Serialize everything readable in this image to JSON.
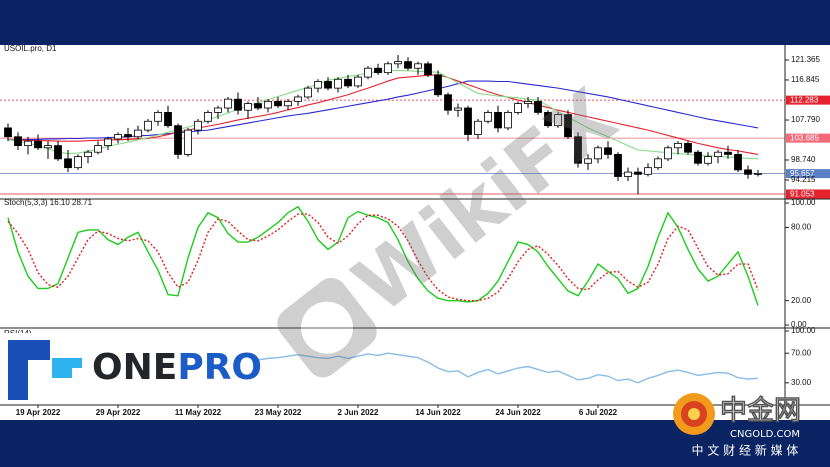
{
  "chart_data": [
    {
      "type": "candlestick",
      "title": "USOIL.pro, D1",
      "categories": [
        null,
        null,
        null,
        "19 Apr 2022",
        null,
        null,
        null,
        null,
        null,
        null,
        null,
        "29 Apr 2022",
        null,
        null,
        null,
        null,
        null,
        null,
        null,
        "11 May 2022",
        null,
        null,
        null,
        null,
        null,
        null,
        null,
        "23 May 2022",
        null,
        null,
        null,
        null,
        null,
        null,
        null,
        "2 Jun 2022",
        null,
        null,
        null,
        null,
        null,
        null,
        null,
        "14 Jun 2022",
        null,
        null,
        null,
        null,
        null,
        null,
        null,
        "24 Jun 2022",
        null,
        null,
        null,
        null,
        null,
        null,
        null,
        "6 Jul 2022",
        null,
        null,
        null,
        null,
        null,
        null,
        null,
        null,
        null,
        null,
        null,
        null,
        null,
        null,
        null,
        null
      ],
      "open": [
        106,
        104,
        102,
        103,
        101.5,
        102,
        99,
        97,
        99.5,
        100.5,
        102,
        103.5,
        104.5,
        104,
        105.5,
        107.5,
        109.5,
        106.5,
        100,
        105.5,
        107.5,
        109.5,
        110.5,
        112.5,
        110,
        111.5,
        110.5,
        112,
        111,
        112,
        113,
        115,
        116.5,
        115,
        117,
        115.5,
        117.5,
        119.5,
        118.5,
        120.5,
        121,
        119.5,
        120.5,
        118,
        113.5,
        110,
        110.5,
        104.5,
        107.5,
        109.5,
        106,
        109.5,
        111.5,
        112,
        109.5,
        106.5,
        109,
        104,
        98,
        99,
        101.5,
        100,
        95,
        96,
        95.5,
        97,
        99,
        101.5,
        102.5,
        100.5,
        98,
        99.5,
        100.5,
        100,
        96.5,
        95.5
      ],
      "high": [
        107,
        105,
        104,
        104.5,
        103,
        103,
        101,
        100,
        101,
        103,
        104,
        105,
        106,
        106.5,
        108,
        110,
        111,
        107,
        106,
        108,
        110,
        111,
        113,
        114,
        112,
        113,
        112.5,
        113,
        112.5,
        113.5,
        115.5,
        117,
        117.5,
        117.5,
        118,
        118,
        120,
        120.5,
        121,
        122.5,
        122,
        121,
        121,
        119,
        114,
        111.5,
        111,
        108,
        110,
        111,
        110,
        112,
        113,
        113,
        110,
        109.5,
        110,
        105,
        100,
        102,
        103,
        100.5,
        97,
        97,
        98,
        99.5,
        102,
        103,
        103,
        101,
        100.5,
        101,
        102,
        101,
        97.5,
        96.5
      ],
      "low": [
        103,
        101,
        100,
        101,
        99,
        98.5,
        96,
        96.5,
        98,
        100,
        101,
        102.5,
        103,
        103.5,
        105,
        106.5,
        106,
        99,
        99.5,
        104.5,
        107,
        108,
        109.5,
        109,
        108,
        110,
        109.5,
        110.5,
        110,
        111,
        112.5,
        114,
        114.5,
        114,
        115,
        115,
        117,
        118,
        118,
        119.5,
        119,
        118,
        117.5,
        113,
        109,
        108.5,
        103,
        103.5,
        107,
        105,
        105.5,
        109,
        110.5,
        109,
        106,
        106,
        103.5,
        97,
        96.5,
        98,
        99,
        94,
        94,
        91,
        95,
        96.5,
        98.5,
        100,
        100,
        97.5,
        97.5,
        98,
        99,
        96,
        94.5,
        95
      ],
      "close": [
        104,
        102,
        103,
        101.5,
        102,
        99,
        97,
        99.5,
        100.5,
        102,
        103.5,
        104.5,
        104,
        105.5,
        107.5,
        109.5,
        106.5,
        100,
        105.5,
        107.5,
        109.5,
        110.5,
        112.5,
        110,
        111.5,
        110.5,
        112,
        111,
        112,
        113,
        115,
        116.5,
        115,
        117,
        115.5,
        117.5,
        119.5,
        118.5,
        120.5,
        121,
        119.5,
        120.5,
        118,
        113.5,
        110,
        110.5,
        104.5,
        107.5,
        109.5,
        106,
        109.5,
        111.5,
        112,
        109.5,
        106.5,
        109,
        104,
        98,
        99,
        101.5,
        100,
        95,
        96,
        95.5,
        97,
        99,
        101.5,
        102.5,
        100.5,
        98,
        99.5,
        100.5,
        100,
        96.5,
        95.5,
        95.7
      ],
      "up_color": "#ffffff",
      "down_color": "#000000",
      "outline_color": "#000000",
      "series": [
        {
          "color": "#2a2ad4",
          "values": [
            103.3,
            103.3,
            103.4,
            103.4,
            103.5,
            103.5,
            103.6,
            103.6,
            103.7,
            103.7,
            103.8,
            103.9,
            104,
            104.2,
            104.3,
            104.5,
            104.7,
            104.9,
            105.1,
            105.3,
            105.5,
            105.9,
            106.3,
            106.7,
            107.1,
            107.5,
            107.9,
            108.3,
            108.7,
            109,
            109.3,
            109.7,
            110.1,
            110.5,
            110.9,
            111.3,
            111.7,
            112.1,
            112.5,
            113,
            113.4,
            113.9,
            114.4,
            114.9,
            115.4,
            116,
            116.6,
            116.6,
            116.6,
            116.5,
            116.5,
            116.2,
            115.9,
            115.6,
            115.3,
            115,
            114.6,
            114.2,
            113.8,
            113.4,
            113,
            112.5,
            112,
            111.5,
            111,
            110.5,
            110,
            109.5,
            109,
            108.5,
            108,
            107.6,
            107.2,
            106.8,
            106.4,
            106
          ]
        },
        {
          "color": "#e5232f",
          "values": [
            103.3,
            103.2,
            103.2,
            103.1,
            103.1,
            103,
            103,
            103,
            103.1,
            103.2,
            103.3,
            103.3,
            103.4,
            103.5,
            103.6,
            104,
            104.5,
            105,
            105.5,
            106,
            106.4,
            106.8,
            107.3,
            107.8,
            108.2,
            108.6,
            109,
            109.5,
            110.1,
            110.6,
            111.2,
            111.7,
            112.3,
            112.9,
            113.5,
            114.3,
            115,
            115.8,
            116.6,
            117.3,
            117.5,
            117.7,
            117.9,
            118,
            117.4,
            116.6,
            115.8,
            115,
            114.2,
            113.5,
            112.9,
            112.3,
            111.7,
            111.2,
            110.6,
            110,
            109.5,
            109,
            108.5,
            108,
            107.5,
            107,
            106.5,
            106,
            105.5,
            104.9,
            104.3,
            103.7,
            103.1,
            102.5,
            102,
            101.5,
            101.1,
            100.8,
            100.4,
            100
          ]
        },
        {
          "color": "#86dc86",
          "values": [
            103.3,
            103,
            102.5,
            102,
            101.3,
            100.5,
            100.2,
            100.3,
            100.7,
            101.2,
            101.8,
            102.3,
            102.8,
            103.3,
            103.8,
            104.4,
            105,
            105.6,
            106.2,
            106.8,
            107.8,
            108.6,
            109.4,
            110.2,
            111,
            111.7,
            112.4,
            113.1,
            113.8,
            114.5,
            115.2,
            115.9,
            116.8,
            117.2,
            117.6,
            118,
            118.4,
            118.8,
            119,
            119,
            118.9,
            118.8,
            118.7,
            118.6,
            117.4,
            116.2,
            115,
            113.8,
            113.5,
            113.2,
            113,
            112.8,
            112.5,
            112.3,
            111,
            109.7,
            108.4,
            107.2,
            106,
            105,
            104,
            103,
            102,
            101,
            100.8,
            100.6,
            100.4,
            100.2,
            100,
            99.8,
            99.7,
            99.6,
            99.4,
            99.3,
            99.1,
            99
          ]
        }
      ],
      "levels": [
        {
          "value": 112.283,
          "color": "#e5232f",
          "dash": true
        },
        {
          "value": 103.685,
          "color": "#f26a7a",
          "dash": false
        },
        {
          "value": 95.657,
          "color": "#5b7fc4",
          "dash": false
        },
        {
          "value": 91.053,
          "color": "#e5232f",
          "dash": false
        }
      ],
      "ylim": [
        90.14,
        124.53
      ],
      "yticks": [
        121.365,
        116.845,
        {
          "value": 107.79,
          "label": "107.790"
        },
        {
          "value": 98.74,
          "label": "98.740"
        },
        94.215
      ]
    },
    {
      "type": "line",
      "title": "Stoch(5,3,3) 16.10 28.71",
      "series": [
        {
          "color": "#1ecc1e",
          "dash": false,
          "values": [
            88,
            60,
            40,
            30,
            30,
            34,
            55,
            76,
            78,
            78,
            70,
            66,
            72,
            76,
            60,
            45,
            25,
            24,
            55,
            80,
            92,
            88,
            75,
            68,
            68,
            72,
            78,
            84,
            92,
            97,
            85,
            70,
            62,
            68,
            88,
            93,
            90,
            88,
            84,
            70,
            52,
            38,
            28,
            22,
            20,
            20,
            19,
            20,
            26,
            36,
            52,
            68,
            66,
            60,
            48,
            38,
            28,
            24,
            36,
            50,
            44,
            38,
            26,
            30,
            48,
            72,
            92,
            80,
            62,
            46,
            36,
            40,
            50,
            60,
            40,
            16.1
          ]
        },
        {
          "color": "#e02020",
          "dash": true,
          "values": [
            85,
            75,
            62,
            43,
            33,
            31,
            40,
            55,
            70,
            77,
            75,
            71,
            69,
            71,
            69,
            60,
            43,
            31,
            35,
            53,
            76,
            87,
            85,
            77,
            70,
            69,
            73,
            78,
            85,
            91,
            91,
            84,
            72,
            67,
            73,
            83,
            90,
            90,
            87,
            81,
            69,
            53,
            39,
            29,
            23,
            21,
            20,
            20,
            22,
            27,
            38,
            52,
            62,
            65,
            58,
            49,
            38,
            30,
            29,
            37,
            43,
            44,
            36,
            31,
            35,
            50,
            71,
            81,
            78,
            63,
            48,
            41,
            42,
            50,
            50,
            28.71
          ]
        }
      ],
      "ylim": [
        -1.6,
        102.5
      ],
      "yticks": [
        {
          "value": 100,
          "label": "100.00"
        },
        {
          "value": 80,
          "label": "80.00"
        },
        {
          "value": 20,
          "label": "20.00"
        },
        {
          "value": 0,
          "label": "0.00"
        }
      ]
    },
    {
      "type": "line",
      "title": "RSI(14)",
      "series": [
        {
          "color": "#86bde8",
          "dash": false,
          "values": [
            50,
            47,
            48,
            45,
            44,
            40,
            38,
            42,
            45,
            48,
            51,
            53,
            55,
            57,
            60,
            52,
            42,
            50,
            56,
            60,
            63,
            64,
            62,
            60,
            62,
            61,
            63,
            64,
            66,
            68,
            66,
            64,
            63,
            66,
            63,
            66,
            69,
            67,
            70,
            68,
            66,
            64,
            58,
            50,
            45,
            46,
            38,
            44,
            48,
            42,
            46,
            50,
            52,
            48,
            44,
            46,
            40,
            34,
            36,
            41,
            39,
            33,
            35,
            30,
            36,
            40,
            45,
            47,
            44,
            40,
            42,
            44,
            43,
            37,
            35,
            36
          ]
        }
      ],
      "ylim": [
        0,
        100
      ],
      "yticks": [
        {
          "value": 100,
          "label": "100.00"
        },
        {
          "value": 70,
          "label": "70.00"
        },
        {
          "value": 30,
          "label": "30.00"
        }
      ]
    }
  ],
  "watermark": "WikiFX",
  "onepro": {
    "one": "ONE",
    "pro": "PRO"
  },
  "cngold": {
    "name": "中金网",
    "site": "CNGOLD.COM",
    "tagline": "中 文 财 经 新 媒 体"
  }
}
